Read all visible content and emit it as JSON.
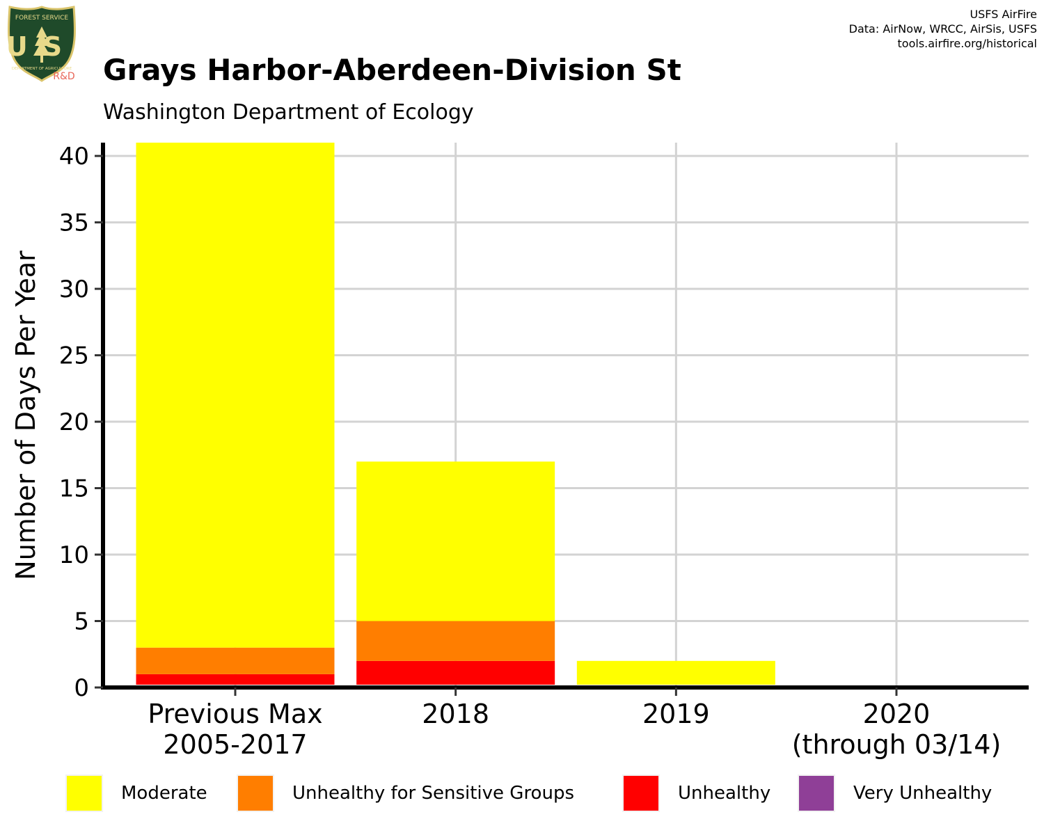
{
  "header": {
    "title": "Grays Harbor-Aberdeen-Division St",
    "subtitle": "Washington Department of Ecology"
  },
  "credits": {
    "line1": "USFS AirFire",
    "line2": "Data: AirNow, WRCC, AirSis, USFS",
    "line3": "tools.airfire.org/historical"
  },
  "logo": {
    "top_text": "FOREST SERVICE",
    "letters": "US",
    "bottom_text": "DEPARTMENT OF AGRICULTURE",
    "tag": "R&D",
    "icon": "forest-service-shield-icon"
  },
  "colors": {
    "moderate": "#FFFF00",
    "usg": "#FF7E00",
    "unhealthy": "#FF0000",
    "very_unhealthy": "#8F3F97",
    "grid": "#d3d3d3",
    "axis": "#000000"
  },
  "chart_data": {
    "type": "bar",
    "stacked": true,
    "categories": [
      [
        "Previous Max",
        "2005-2017"
      ],
      [
        "2018"
      ],
      [
        "2019"
      ],
      [
        "2020",
        "(through 03/14)"
      ]
    ],
    "series": [
      {
        "name": "Unhealthy",
        "color": "#FF0000",
        "values": [
          1,
          2,
          0,
          0
        ]
      },
      {
        "name": "Unhealthy for Sensitive Groups",
        "color": "#FF7E00",
        "values": [
          2,
          3,
          0,
          0
        ]
      },
      {
        "name": "Moderate",
        "color": "#FFFF00",
        "values": [
          38,
          12,
          2,
          0
        ]
      },
      {
        "name": "Very Unhealthy",
        "color": "#8F3F97",
        "values": [
          0,
          0,
          0,
          0
        ]
      }
    ],
    "ylabel": "Number of Days Per Year",
    "xlabel": "",
    "ylim": [
      0,
      41
    ],
    "yticks": [
      0,
      5,
      10,
      15,
      20,
      25,
      30,
      35,
      40
    ],
    "grid": true,
    "legend": {
      "position": "bottom",
      "entries": [
        "Moderate",
        "Unhealthy for Sensitive Groups",
        "Unhealthy",
        "Very Unhealthy"
      ]
    }
  }
}
